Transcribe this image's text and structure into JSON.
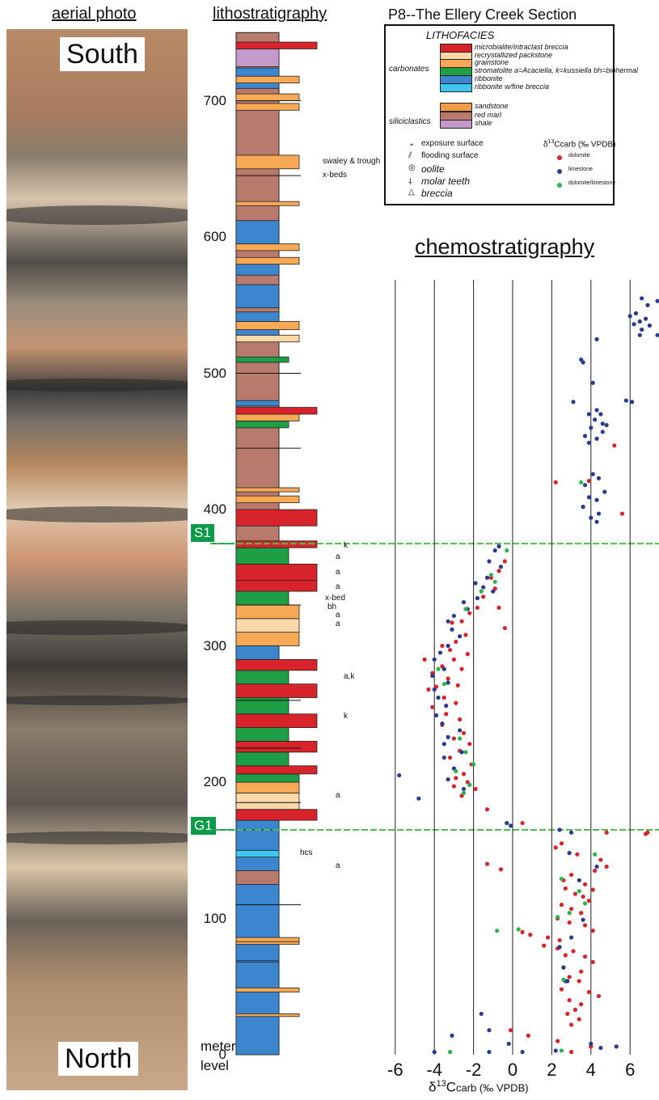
{
  "headers": {
    "aerial": "aerial photo",
    "litho": "lithostratigraphy",
    "section_title": "P8--The Ellery Creek Section",
    "chemo": "chemostratigraphy"
  },
  "photo": {
    "top_label": "South",
    "bottom_label": "North"
  },
  "markers": [
    {
      "label": "S1",
      "level": 375
    },
    {
      "label": "G1",
      "level": 165
    }
  ],
  "axis_meter": {
    "ticks": [
      0,
      100,
      200,
      300,
      400,
      500,
      600,
      700
    ],
    "label_line1": "meter",
    "label_line2": "level"
  },
  "legend": {
    "title": "LITHOFACIES",
    "group_carbonates": "carbonates",
    "group_siliciclastics": "siliciclastics",
    "facies": [
      {
        "key": "breccia",
        "label": "microbialite/intraclast breccia",
        "color": "#d8232a"
      },
      {
        "key": "packstone",
        "label": "recrystallized packstone",
        "color": "#fbd8a8"
      },
      {
        "key": "grainstone",
        "label": "grainstone",
        "color": "#f7a955"
      },
      {
        "key": "stromatolite",
        "label": "stromatolite",
        "sub": "a=Acaciella, k=kussiella bh=biohermal",
        "color": "#1e9e45"
      },
      {
        "key": "ribbonite",
        "label": "ribbonite",
        "color": "#3b86cf"
      },
      {
        "key": "ribbonite_breccia",
        "label": "ribbonite w/fine breccia",
        "color": "#3ec6ef"
      },
      {
        "key": "sandstone",
        "label": "sandstone",
        "color": "#f29a45"
      },
      {
        "key": "red_marl",
        "label": "red marl",
        "color": "#b97a6e"
      },
      {
        "key": "shale",
        "label": "shale",
        "color": "#c39ac9"
      }
    ],
    "symbols": [
      {
        "glyph": "⌄",
        "label": "exposure surface"
      },
      {
        "glyph": "⫽",
        "label": "flooding surface"
      },
      {
        "glyph": "◎",
        "label": "oolite"
      },
      {
        "glyph": "⸸",
        "label": "molar teeth"
      },
      {
        "glyph": "△",
        "label": "breccia"
      }
    ],
    "d13c_title": "δ13Ccarb (‰ VPDB)",
    "d13c_classes": [
      {
        "label": "dolomite",
        "color": "#d8232a"
      },
      {
        "label": "limestone",
        "color": "#2b3a8f"
      },
      {
        "label": "dolomite/limestone",
        "color": "#2db34a"
      }
    ]
  },
  "annotations": [
    {
      "text": "swaley & trough",
      "level": 655
    },
    {
      "text": "x-beds",
      "level": 645
    },
    {
      "text": "k",
      "level": 373
    },
    {
      "text": "a",
      "level": 365
    },
    {
      "text": "a",
      "level": 354
    },
    {
      "text": "a",
      "level": 343
    },
    {
      "text": "x-bed",
      "level": 335
    },
    {
      "text": "bh",
      "level": 328
    },
    {
      "text": "a",
      "level": 322
    },
    {
      "text": "a",
      "level": 316
    },
    {
      "text": "a,k",
      "level": 277
    },
    {
      "text": "k",
      "level": 248
    },
    {
      "text": "a",
      "level": 190
    },
    {
      "text": "hcs",
      "level": 148
    },
    {
      "text": "a",
      "level": 138
    }
  ],
  "chart_data": {
    "type": "scatter",
    "title": "chemostratigraphy",
    "xlabel": "δ13Ccarb (‰ VPDB)",
    "ylabel": "meter level",
    "xlim": [
      -6.6,
      7.6
    ],
    "ylim": [
      0,
      750
    ],
    "xticks": [
      -6,
      -4,
      -2,
      0,
      2,
      4,
      6
    ],
    "grid": "vertical lines",
    "reference_lines": [
      375,
      165
    ],
    "series": [
      {
        "name": "dolomite",
        "color": "#d8232a",
        "points": [
          [
            5.2,
            447
          ],
          [
            2.2,
            420
          ],
          [
            3.9,
            421
          ],
          [
            5.6,
            397
          ],
          [
            -0.4,
            362
          ],
          [
            -0.7,
            355
          ],
          [
            -1.1,
            350
          ],
          [
            -0.9,
            342
          ],
          [
            -1.5,
            336
          ],
          [
            -1.8,
            328
          ],
          [
            -0.7,
            328
          ],
          [
            -2.2,
            324
          ],
          [
            -2.6,
            318
          ],
          [
            -3.1,
            317
          ],
          [
            -0.4,
            313
          ],
          [
            -2.4,
            308
          ],
          [
            -2.9,
            303
          ],
          [
            -3.6,
            300
          ],
          [
            -3.2,
            297
          ],
          [
            -2.3,
            294
          ],
          [
            -3.0,
            290
          ],
          [
            -4.5,
            290
          ],
          [
            -3.6,
            285
          ],
          [
            -2.6,
            283
          ],
          [
            -4.1,
            280
          ],
          [
            -3.3,
            276
          ],
          [
            -2.8,
            271
          ],
          [
            -3.9,
            270
          ],
          [
            -4.3,
            268
          ],
          [
            -3.5,
            262
          ],
          [
            -2.9,
            258
          ],
          [
            -4.1,
            255
          ],
          [
            -3.4,
            250
          ],
          [
            -2.7,
            246
          ],
          [
            -3.6,
            242
          ],
          [
            -2.5,
            236
          ],
          [
            -3.0,
            232
          ],
          [
            -2.2,
            228
          ],
          [
            -2.7,
            223
          ],
          [
            -3.2,
            218
          ],
          [
            -2.1,
            213
          ],
          [
            -2.5,
            206
          ],
          [
            -2.9,
            203
          ],
          [
            -2.3,
            200
          ],
          [
            -3.0,
            197
          ],
          [
            -1.9,
            195
          ],
          [
            -2.6,
            190
          ],
          [
            -1.3,
            180
          ],
          [
            0.5,
            170
          ],
          [
            4.8,
            163
          ],
          [
            6.8,
            162
          ],
          [
            6.9,
            163
          ],
          [
            2.5,
            155
          ],
          [
            2.2,
            152
          ],
          [
            3.3,
            147
          ],
          [
            4.5,
            143
          ],
          [
            4.8,
            138
          ],
          [
            4.2,
            135
          ],
          [
            -1.3,
            140
          ],
          [
            -0.6,
            136
          ],
          [
            3.0,
            132
          ],
          [
            2.6,
            128
          ],
          [
            3.7,
            125
          ],
          [
            2.7,
            122
          ],
          [
            4.1,
            121
          ],
          [
            3.2,
            118
          ],
          [
            3.6,
            116
          ],
          [
            3.9,
            113
          ],
          [
            2.5,
            110
          ],
          [
            3.0,
            107
          ],
          [
            3.5,
            104
          ],
          [
            2.3,
            100
          ],
          [
            2.9,
            97
          ],
          [
            3.7,
            95
          ],
          [
            4.1,
            91
          ],
          [
            0.5,
            90
          ],
          [
            0.9,
            88
          ],
          [
            1.8,
            86
          ],
          [
            2.4,
            84
          ],
          [
            1.6,
            80
          ],
          [
            2.3,
            78
          ],
          [
            3.1,
            76
          ],
          [
            2.7,
            73
          ],
          [
            3.7,
            72
          ],
          [
            4.1,
            68
          ],
          [
            2.6,
            64
          ],
          [
            3.5,
            61
          ],
          [
            2.9,
            57
          ],
          [
            3.4,
            54
          ],
          [
            2.5,
            48
          ],
          [
            3.9,
            46
          ],
          [
            4.4,
            43
          ],
          [
            2.9,
            40
          ],
          [
            3.5,
            37
          ],
          [
            3.2,
            33
          ],
          [
            2.8,
            30
          ],
          [
            3.4,
            26
          ],
          [
            3.0,
            22
          ],
          [
            -0.1,
            18
          ],
          [
            0.8,
            14
          ],
          [
            2.3,
            10
          ],
          [
            4.0,
            6
          ],
          [
            3.0,
            2
          ]
        ]
      },
      {
        "name": "limestone",
        "color": "#2b3a8f",
        "points": [
          [
            6.6,
            555
          ],
          [
            7.4,
            553
          ],
          [
            6.9,
            550
          ],
          [
            6.3,
            544
          ],
          [
            6.0,
            542
          ],
          [
            6.8,
            540
          ],
          [
            6.5,
            538
          ],
          [
            6.2,
            536
          ],
          [
            7.0,
            535
          ],
          [
            6.6,
            532
          ],
          [
            7.4,
            528
          ],
          [
            6.5,
            528
          ],
          [
            4.3,
            525
          ],
          [
            3.5,
            510
          ],
          [
            3.6,
            508
          ],
          [
            4.1,
            493
          ],
          [
            3.1,
            479
          ],
          [
            5.8,
            480
          ],
          [
            6.1,
            479
          ],
          [
            4.3,
            473
          ],
          [
            4.5,
            470
          ],
          [
            3.9,
            470
          ],
          [
            4.2,
            466
          ],
          [
            4.6,
            463
          ],
          [
            4.8,
            462
          ],
          [
            4.0,
            460
          ],
          [
            4.6,
            457
          ],
          [
            3.7,
            454
          ],
          [
            4.3,
            452
          ],
          [
            3.9,
            449
          ],
          [
            4.1,
            426
          ],
          [
            4.4,
            423
          ],
          [
            3.7,
            418
          ],
          [
            4.7,
            413
          ],
          [
            3.9,
            409
          ],
          [
            4.3,
            407
          ],
          [
            3.6,
            402
          ],
          [
            4.4,
            397
          ],
          [
            4.0,
            394
          ],
          [
            4.3,
            391
          ],
          [
            -0.7,
            373
          ],
          [
            -0.9,
            370
          ],
          [
            -1.2,
            362
          ],
          [
            -0.6,
            358
          ],
          [
            -1.3,
            350
          ],
          [
            -1.9,
            346
          ],
          [
            -1.5,
            343
          ],
          [
            -1.0,
            340
          ],
          [
            -1.8,
            335
          ],
          [
            -2.5,
            332
          ],
          [
            -2.3,
            327
          ],
          [
            -3.0,
            322
          ],
          [
            -3.3,
            318
          ],
          [
            -3.1,
            312
          ],
          [
            -2.7,
            307
          ],
          [
            -3.3,
            300
          ],
          [
            -3.7,
            295
          ],
          [
            -4.0,
            290
          ],
          [
            -3.5,
            283
          ],
          [
            -4.1,
            278
          ],
          [
            -3.3,
            273
          ],
          [
            -4.0,
            268
          ],
          [
            -3.8,
            262
          ],
          [
            -3.4,
            256
          ],
          [
            -3.9,
            249
          ],
          [
            -3.6,
            243
          ],
          [
            -2.7,
            238
          ],
          [
            -3.3,
            233
          ],
          [
            -3.5,
            228
          ],
          [
            -2.6,
            222
          ],
          [
            -3.5,
            218
          ],
          [
            -3.0,
            210
          ],
          [
            -3.3,
            202
          ],
          [
            -2.5,
            195
          ],
          [
            -5.8,
            205
          ],
          [
            -4.8,
            188
          ],
          [
            -0.3,
            170
          ],
          [
            -0.1,
            168
          ],
          [
            2.4,
            165
          ],
          [
            3.0,
            163
          ],
          [
            2.9,
            148
          ],
          [
            4.3,
            138
          ],
          [
            3.4,
            128
          ],
          [
            3.6,
            99
          ],
          [
            3.0,
            86
          ],
          [
            2.4,
            79
          ],
          [
            2.6,
            64
          ],
          [
            2.7,
            54
          ],
          [
            2.8,
            54
          ],
          [
            -1.6,
            30
          ],
          [
            -1.2,
            18
          ],
          [
            -3.1,
            14
          ],
          [
            -0.2,
            8
          ],
          [
            4.0,
            8
          ],
          [
            4.5,
            5
          ],
          [
            5.3,
            6
          ],
          [
            -4.0,
            2
          ],
          [
            -1.2,
            2
          ],
          [
            0.5,
            2
          ],
          [
            2.2,
            3
          ]
        ]
      },
      {
        "name": "dolomite/limestone",
        "color": "#2db34a",
        "points": [
          [
            3.5,
            420
          ],
          [
            -0.3,
            370
          ],
          [
            -1.1,
            352
          ],
          [
            -0.9,
            347
          ],
          [
            -1.6,
            340
          ],
          [
            -2.4,
            327
          ],
          [
            -3.8,
            283
          ],
          [
            -3.5,
            272
          ],
          [
            -2.7,
            232
          ],
          [
            -2.4,
            222
          ],
          [
            -2.0,
            213
          ],
          [
            -2.9,
            208
          ],
          [
            -2.2,
            198
          ],
          [
            -2.5,
            192
          ],
          [
            4.2,
            147
          ],
          [
            2.5,
            129
          ],
          [
            3.4,
            120
          ],
          [
            3.7,
            111
          ],
          [
            2.9,
            104
          ],
          [
            2.3,
            101
          ],
          [
            0.3,
            92
          ],
          [
            -0.8,
            91
          ],
          [
            2.6,
            55
          ],
          [
            2.5,
            3
          ],
          [
            -3.2,
            2
          ]
        ]
      }
    ]
  }
}
